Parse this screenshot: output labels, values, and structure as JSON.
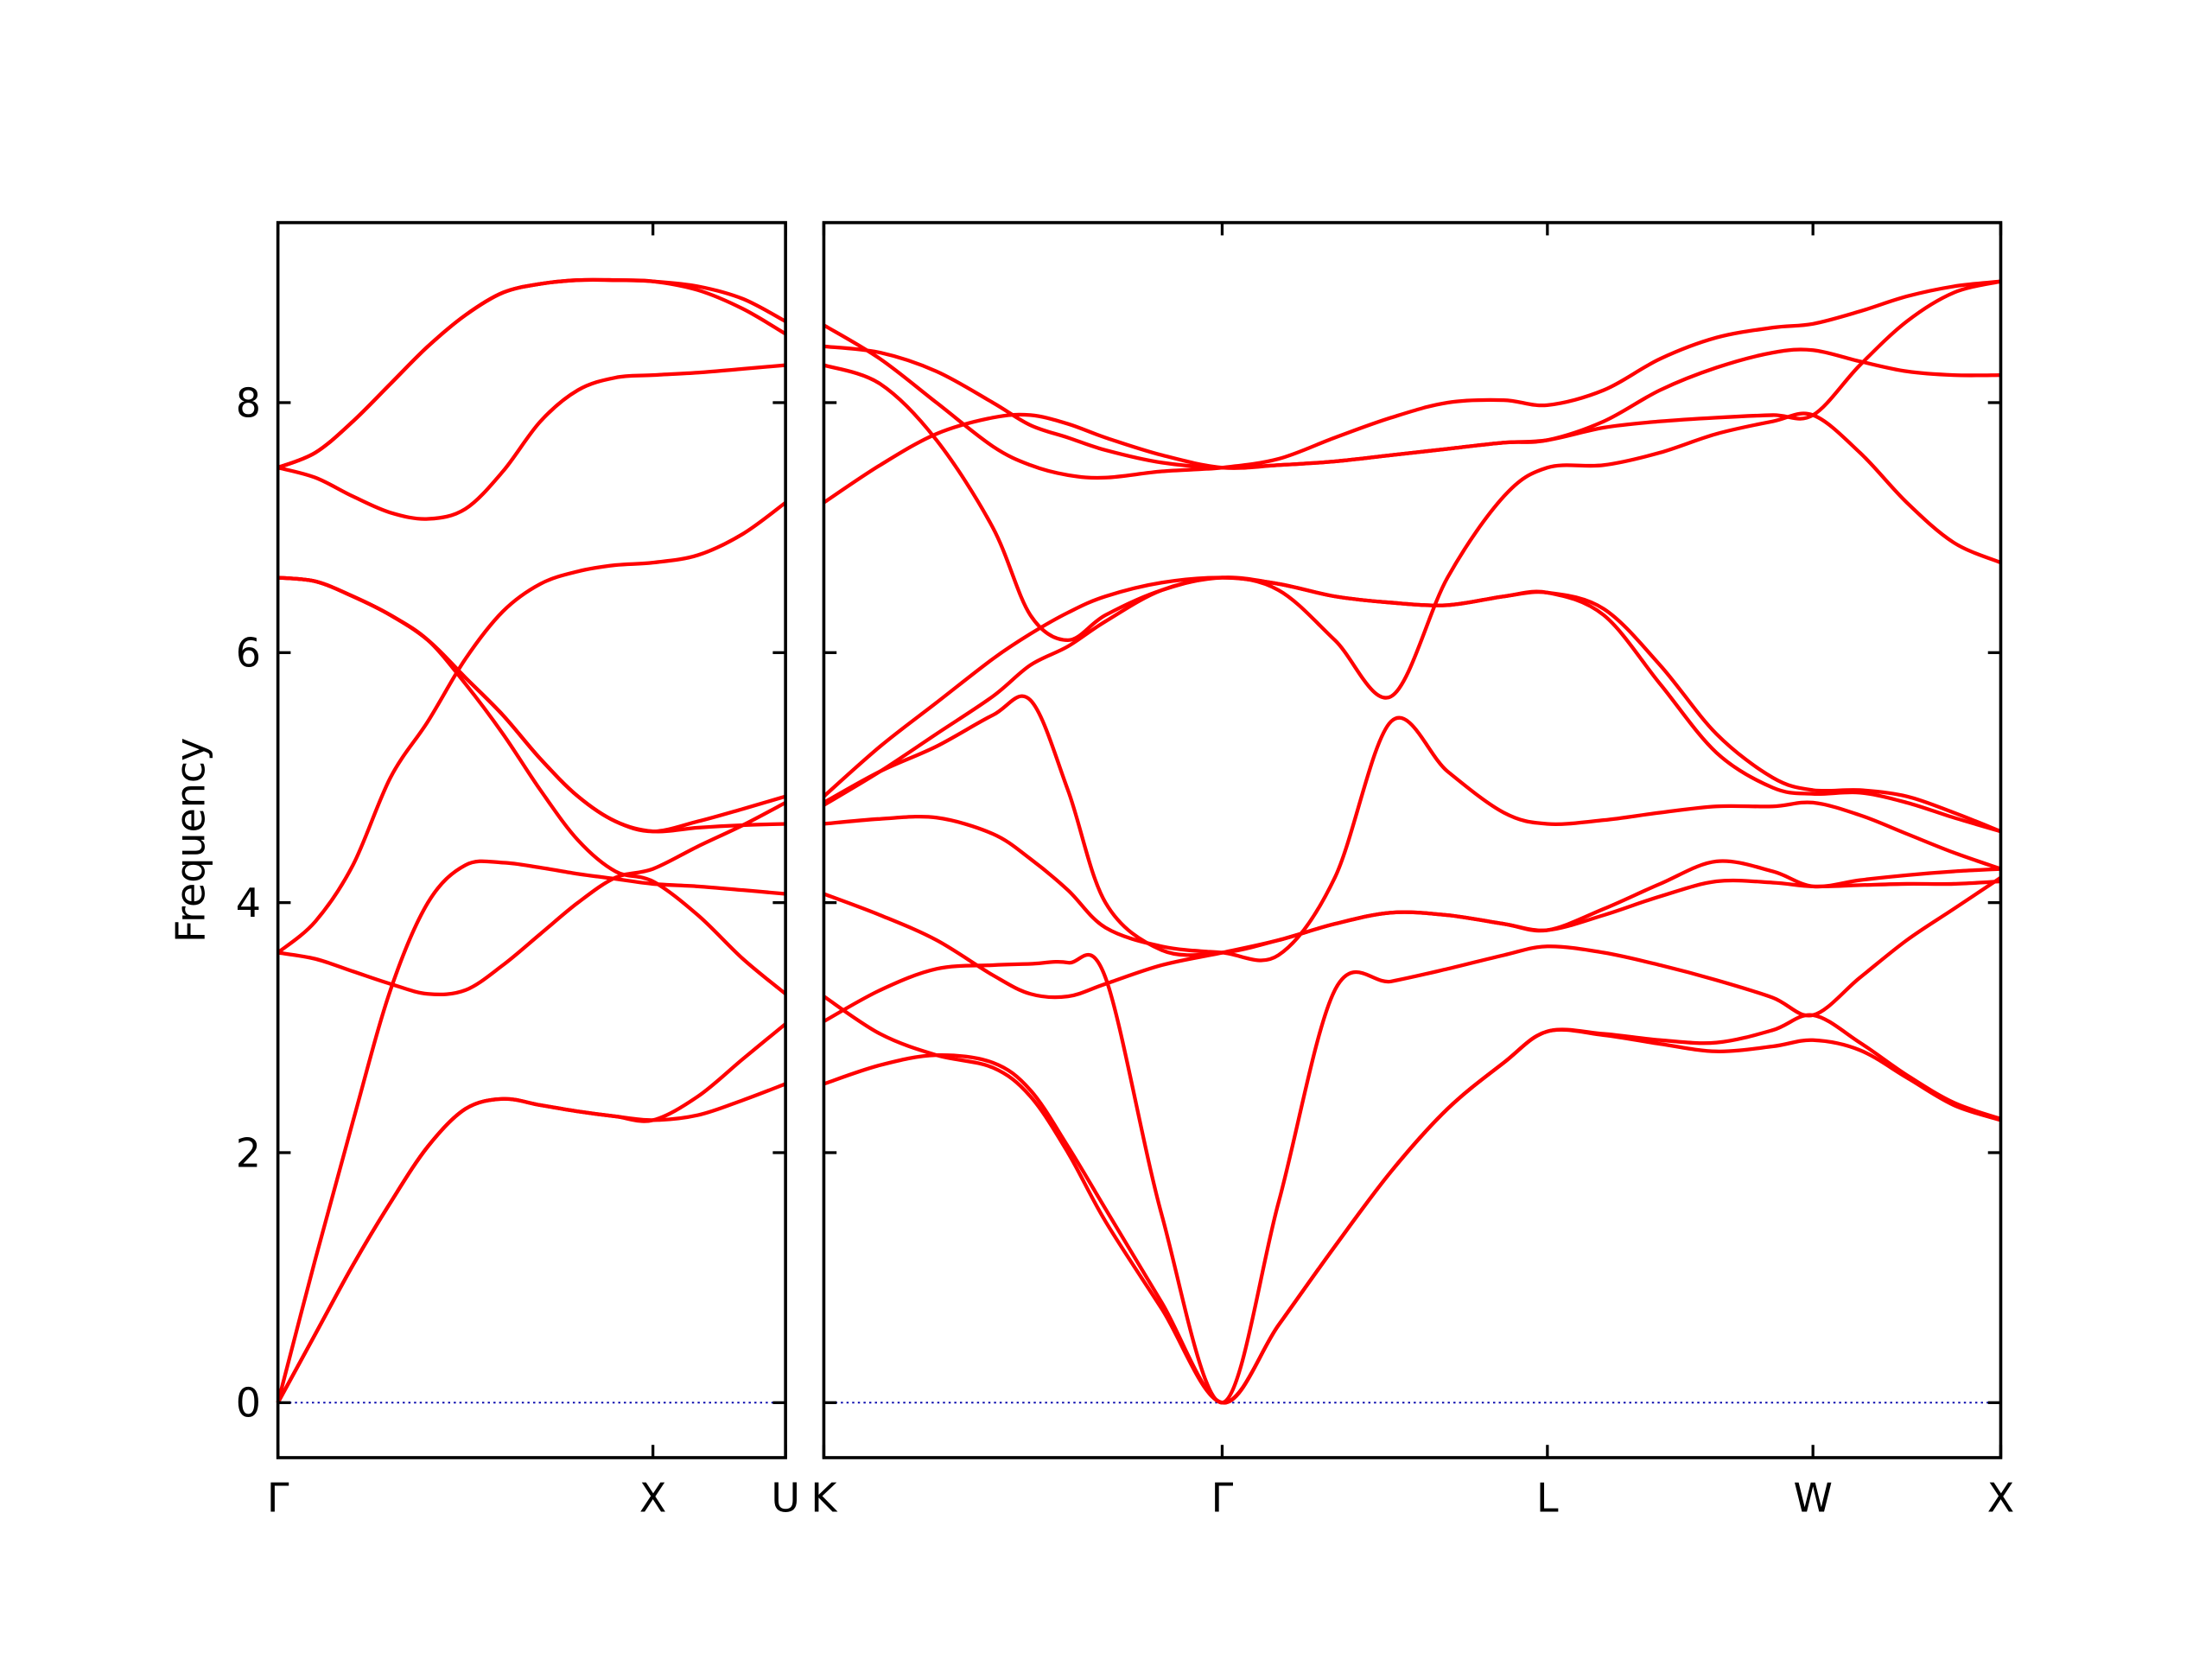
{
  "chart_data": [
    {
      "type": "line",
      "y_label": "Frequency",
      "x": [
        0,
        0.1,
        0.2,
        0.3,
        0.4,
        0.5,
        0.6,
        0.7,
        0.8,
        0.9,
        1.0,
        1.12,
        1.24,
        1.3536
      ],
      "xlim": [
        0,
        1.3536
      ],
      "xticks": [
        {
          "value": 0,
          "label": "Γ"
        },
        {
          "value": 1,
          "label": "X"
        },
        {
          "value": 1.3536,
          "label": "U"
        }
      ],
      "ylim": [
        -0.44,
        9.44
      ],
      "yticks": [
        0,
        2,
        4,
        6,
        8
      ],
      "zero_line_color": "#0000aa",
      "series": [
        {
          "color": "#ff0000",
          "values": [
            0,
            0.55,
            1.1,
            1.6,
            2.05,
            2.35,
            2.43,
            2.38,
            2.33,
            2.29,
            2.26,
            2.3,
            2.42,
            2.55
          ]
        },
        {
          "color": "#ff0000",
          "values": [
            0,
            0.55,
            1.1,
            1.6,
            2.05,
            2.35,
            2.43,
            2.38,
            2.33,
            2.29,
            2.26,
            2.45,
            2.75,
            3.03
          ]
        },
        {
          "color": "#ff0000",
          "values": [
            0,
            1.15,
            2.25,
            3.3,
            4.0,
            4.3,
            4.32,
            4.28,
            4.23,
            4.19,
            4.15,
            4.13,
            4.1,
            4.07
          ]
        },
        {
          "color": "#ff0000",
          "values": [
            3.6,
            3.55,
            3.45,
            3.35,
            3.27,
            3.3,
            3.5,
            3.75,
            4.0,
            4.2,
            4.27,
            4.45,
            4.62,
            4.8
          ]
        },
        {
          "color": "#ff0000",
          "values": [
            3.6,
            3.85,
            4.3,
            5.0,
            5.45,
            5.95,
            6.33,
            6.55,
            6.65,
            6.7,
            6.72,
            6.78,
            6.95,
            7.2
          ]
        },
        {
          "color": "#ff0000",
          "values": [
            6.6,
            6.57,
            6.45,
            6.3,
            6.1,
            5.8,
            5.5,
            5.15,
            4.85,
            4.65,
            4.57,
            4.6,
            4.62,
            4.63
          ]
        },
        {
          "color": "#ff0000",
          "values": [
            6.6,
            6.57,
            6.45,
            6.3,
            6.1,
            5.8,
            5.5,
            5.15,
            4.85,
            4.65,
            4.57,
            4.65,
            4.75,
            4.85
          ]
        },
        {
          "color": "#ff0000",
          "values": [
            6.6,
            6.57,
            6.45,
            6.3,
            6.1,
            5.75,
            5.35,
            4.9,
            4.5,
            4.25,
            4.17,
            3.9,
            3.55,
            3.27
          ]
        },
        {
          "color": "#ff0000",
          "values": [
            7.48,
            7.6,
            7.85,
            8.15,
            8.45,
            8.7,
            8.88,
            8.95,
            8.98,
            8.98,
            8.97,
            8.9,
            8.75,
            8.55
          ]
        },
        {
          "color": "#ff0000",
          "values": [
            7.48,
            7.6,
            7.85,
            8.15,
            8.45,
            8.7,
            8.88,
            8.95,
            8.98,
            8.98,
            8.97,
            8.93,
            8.83,
            8.65
          ]
        },
        {
          "color": "#ff0000",
          "values": [
            7.48,
            7.4,
            7.25,
            7.12,
            7.07,
            7.15,
            7.45,
            7.85,
            8.1,
            8.2,
            8.22,
            8.24,
            8.27,
            8.3
          ]
        }
      ]
    },
    {
      "type": "line",
      "x": [
        0,
        0.15,
        0.3,
        0.45,
        0.55,
        0.65,
        0.75,
        0.9,
        1.0607,
        1.2107,
        1.3607,
        1.5107,
        1.6607,
        1.8107,
        1.9267,
        2.0767,
        2.2267,
        2.3767,
        2.5267,
        2.6338,
        2.7588,
        2.8838,
        3.0088,
        3.1338
      ],
      "xlim": [
        0,
        3.1338
      ],
      "xticks": [
        {
          "value": 0,
          "label": "K"
        },
        {
          "value": 1.0607,
          "label": "Γ"
        },
        {
          "value": 1.9267,
          "label": "L"
        },
        {
          "value": 2.6338,
          "label": "W"
        },
        {
          "value": 3.1338,
          "label": "X"
        }
      ],
      "ylim": [
        -0.44,
        9.44
      ],
      "yticks": [
        0,
        2,
        4,
        6,
        8
      ],
      "zero_line_color": "#0000aa",
      "series": [
        {
          "color": "#ff0000",
          "values": [
            2.55,
            2.7,
            2.78,
            2.72,
            2.5,
            2.05,
            1.55,
            0.8,
            0,
            0.62,
            1.25,
            1.85,
            2.35,
            2.72,
            2.97,
            2.94,
            2.87,
            2.81,
            2.85,
            2.9,
            2.82,
            2.6,
            2.38,
            2.26
          ]
        },
        {
          "color": "#ff0000",
          "values": [
            3.25,
            2.95,
            2.78,
            2.68,
            2.45,
            2.0,
            1.45,
            0.75,
            0,
            0.62,
            1.25,
            1.85,
            2.35,
            2.72,
            2.97,
            2.95,
            2.9,
            2.88,
            2.98,
            3.1,
            2.88,
            2.62,
            2.4,
            2.27
          ]
        },
        {
          "color": "#ff0000",
          "values": [
            3.05,
            3.3,
            3.47,
            3.5,
            3.51,
            3.52,
            3.4,
            1.5,
            0,
            1.6,
            3.3,
            3.37,
            3.47,
            3.58,
            3.65,
            3.6,
            3.5,
            3.38,
            3.24,
            3.1,
            3.4,
            3.7,
            3.95,
            4.2
          ]
        },
        {
          "color": "#ff0000",
          "values": [
            4.07,
            3.9,
            3.7,
            3.42,
            3.27,
            3.25,
            3.35,
            3.5,
            3.6,
            3.7,
            3.83,
            3.92,
            3.9,
            3.83,
            3.78,
            3.9,
            4.05,
            4.17,
            4.16,
            4.13,
            4.14,
            4.15,
            4.15,
            4.17
          ]
        },
        {
          "color": "#ff0000",
          "values": [
            4.63,
            4.67,
            4.68,
            4.55,
            4.35,
            4.1,
            3.8,
            3.65,
            3.6,
            3.58,
            4.2,
            5.45,
            5.05,
            4.72,
            4.63,
            4.66,
            4.72,
            4.77,
            4.77,
            4.8,
            4.7,
            4.55,
            4.4,
            4.27
          ]
        },
        {
          "color": "#ff0000",
          "values": [
            4.8,
            5.05,
            5.25,
            5.5,
            5.62,
            4.9,
            4.0,
            3.62,
            3.6,
            3.7,
            3.83,
            3.92,
            3.9,
            3.83,
            3.78,
            3.95,
            4.15,
            4.33,
            4.25,
            4.13,
            4.18,
            4.22,
            4.25,
            4.27
          ]
        },
        {
          "color": "#ff0000",
          "values": [
            4.85,
            5.25,
            5.6,
            5.95,
            6.15,
            6.32,
            6.45,
            6.56,
            6.6,
            6.55,
            6.45,
            6.4,
            6.38,
            6.45,
            6.48,
            6.3,
            5.75,
            5.2,
            4.92,
            4.87,
            4.88,
            4.8,
            4.68,
            4.57
          ]
        },
        {
          "color": "#ff0000",
          "values": [
            4.78,
            5.05,
            5.35,
            5.65,
            5.9,
            6.05,
            6.25,
            6.5,
            6.6,
            6.55,
            6.45,
            6.4,
            6.38,
            6.45,
            6.48,
            6.35,
            5.9,
            5.35,
            5.0,
            4.9,
            4.9,
            4.85,
            4.72,
            4.57
          ]
        },
        {
          "color": "#ff0000",
          "values": [
            8.3,
            8.15,
            7.7,
            7.0,
            6.3,
            6.1,
            6.3,
            6.5,
            6.6,
            6.5,
            6.1,
            5.65,
            6.6,
            7.25,
            7.48,
            7.5,
            7.6,
            7.75,
            7.85,
            7.9,
            7.6,
            7.2,
            6.88,
            6.72
          ]
        },
        {
          "color": "#ff0000",
          "values": [
            7.2,
            7.5,
            7.75,
            7.88,
            7.9,
            7.83,
            7.72,
            7.58,
            7.48,
            7.5,
            7.53,
            7.58,
            7.63,
            7.68,
            7.7,
            7.8,
            7.85,
            7.88,
            7.9,
            7.9,
            8.3,
            8.65,
            8.88,
            8.97
          ]
        },
        {
          "color": "#ff0000",
          "values": [
            8.62,
            8.35,
            8.0,
            7.65,
            7.5,
            7.42,
            7.4,
            7.45,
            7.48,
            7.55,
            7.72,
            7.88,
            8.0,
            8.02,
            7.98,
            8.1,
            8.35,
            8.52,
            8.6,
            8.63,
            8.73,
            8.85,
            8.93,
            8.97
          ]
        },
        {
          "color": "#ff0000",
          "values": [
            8.45,
            8.4,
            8.25,
            8.0,
            7.82,
            7.72,
            7.62,
            7.52,
            7.48,
            7.5,
            7.53,
            7.58,
            7.63,
            7.68,
            7.7,
            7.85,
            8.1,
            8.28,
            8.4,
            8.42,
            8.33,
            8.25,
            8.22,
            8.22
          ]
        }
      ]
    }
  ]
}
